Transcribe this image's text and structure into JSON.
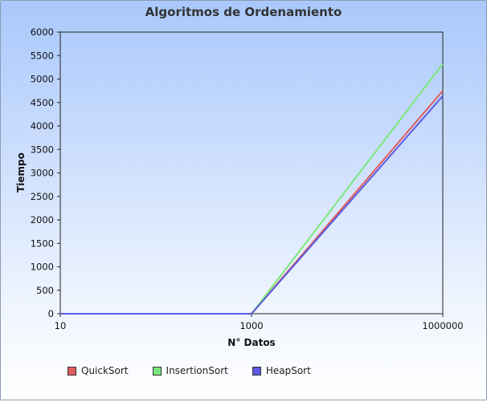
{
  "chart_data": {
    "type": "line",
    "title": "Algoritmos de Ordenamiento",
    "xlabel": "N° Datos",
    "ylabel": "Tiempo",
    "categories": [
      "10",
      "1000",
      "1000000"
    ],
    "ylim": [
      0,
      6000
    ],
    "yticks": [
      "0",
      "500",
      "1000",
      "1500",
      "2000",
      "2500",
      "3000",
      "3500",
      "4000",
      "4500",
      "5000",
      "5500",
      "6000"
    ],
    "grid": false,
    "legend_position": "bottom",
    "series": [
      {
        "name": "QuickSort",
        "color": "#e05c5c",
        "values": [
          0,
          0,
          4750
        ]
      },
      {
        "name": "InsertionSort",
        "color": "#7be87b",
        "values": [
          0,
          0,
          5320
        ]
      },
      {
        "name": "HeapSort",
        "color": "#5c5ce0",
        "values": [
          0,
          0,
          4640
        ]
      }
    ]
  }
}
